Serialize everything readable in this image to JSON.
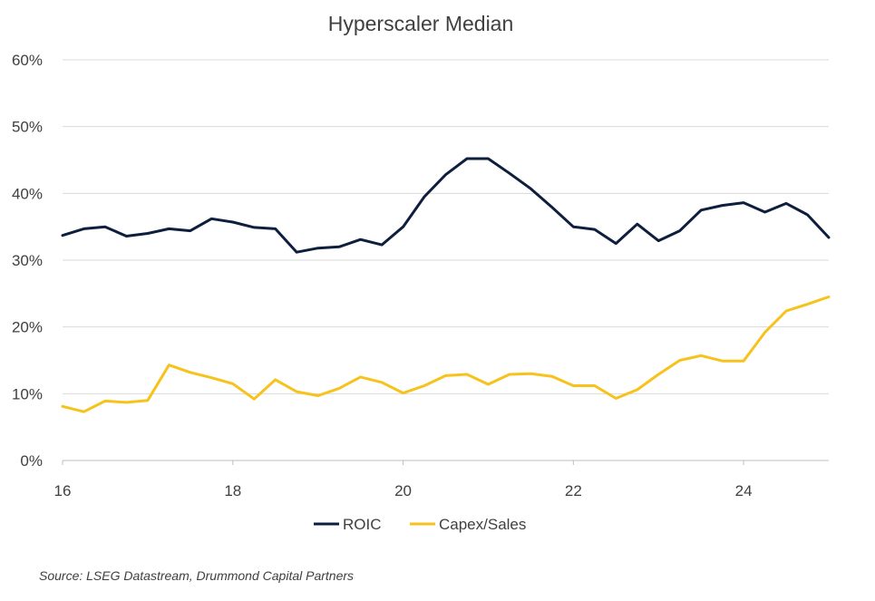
{
  "chart_data": {
    "type": "line",
    "title": "Hyperscaler Median",
    "xlabel": "",
    "ylabel": "",
    "xlim": [
      16,
      25
    ],
    "ylim": [
      0,
      60
    ],
    "x_ticks": [
      16,
      18,
      20,
      22,
      24
    ],
    "x_tick_labels": [
      "16",
      "18",
      "20",
      "22",
      "24"
    ],
    "y_ticks": [
      0,
      10,
      20,
      30,
      40,
      50,
      60
    ],
    "y_tick_labels": [
      "0%",
      "10%",
      "20%",
      "30%",
      "40%",
      "50%",
      "60%"
    ],
    "grid": "horizontal",
    "legend_position": "bottom",
    "x": [
      16,
      16.25,
      16.5,
      16.75,
      17,
      17.25,
      17.5,
      17.75,
      18,
      18.25,
      18.5,
      18.75,
      19,
      19.25,
      19.5,
      19.75,
      20,
      20.25,
      20.5,
      20.75,
      21,
      21.25,
      21.5,
      21.75,
      22,
      22.25,
      22.5,
      22.75,
      23,
      23.25,
      23.5,
      23.75,
      24,
      24.25,
      24.5,
      24.75,
      25
    ],
    "series": [
      {
        "name": "ROIC",
        "color": "#0e1e3d",
        "values": [
          33.7,
          34.7,
          35.0,
          33.6,
          34.0,
          34.7,
          34.4,
          36.2,
          35.7,
          34.9,
          34.7,
          31.2,
          31.8,
          32.0,
          33.1,
          32.3,
          35.0,
          39.5,
          42.8,
          45.2,
          45.2,
          43.0,
          40.7,
          37.9,
          35.0,
          34.6,
          32.5,
          35.4,
          32.9,
          34.4,
          37.5,
          38.2,
          38.6,
          37.2,
          38.5,
          36.8,
          33.4
        ]
      },
      {
        "name": "Capex/Sales",
        "color": "#f7c21b",
        "values": [
          8.1,
          7.3,
          8.9,
          8.7,
          9.0,
          14.3,
          13.2,
          12.4,
          11.5,
          9.2,
          12.1,
          10.3,
          9.7,
          10.8,
          12.5,
          11.7,
          10.1,
          11.2,
          12.7,
          12.9,
          11.4,
          12.9,
          13.0,
          12.6,
          11.2,
          11.2,
          9.3,
          10.6,
          12.9,
          15.0,
          15.7,
          14.9,
          14.9,
          19.2,
          22.4,
          23.4,
          24.5
        ]
      }
    ]
  },
  "source_note": "Source: LSEG Datastream, Drummond Capital Partners"
}
